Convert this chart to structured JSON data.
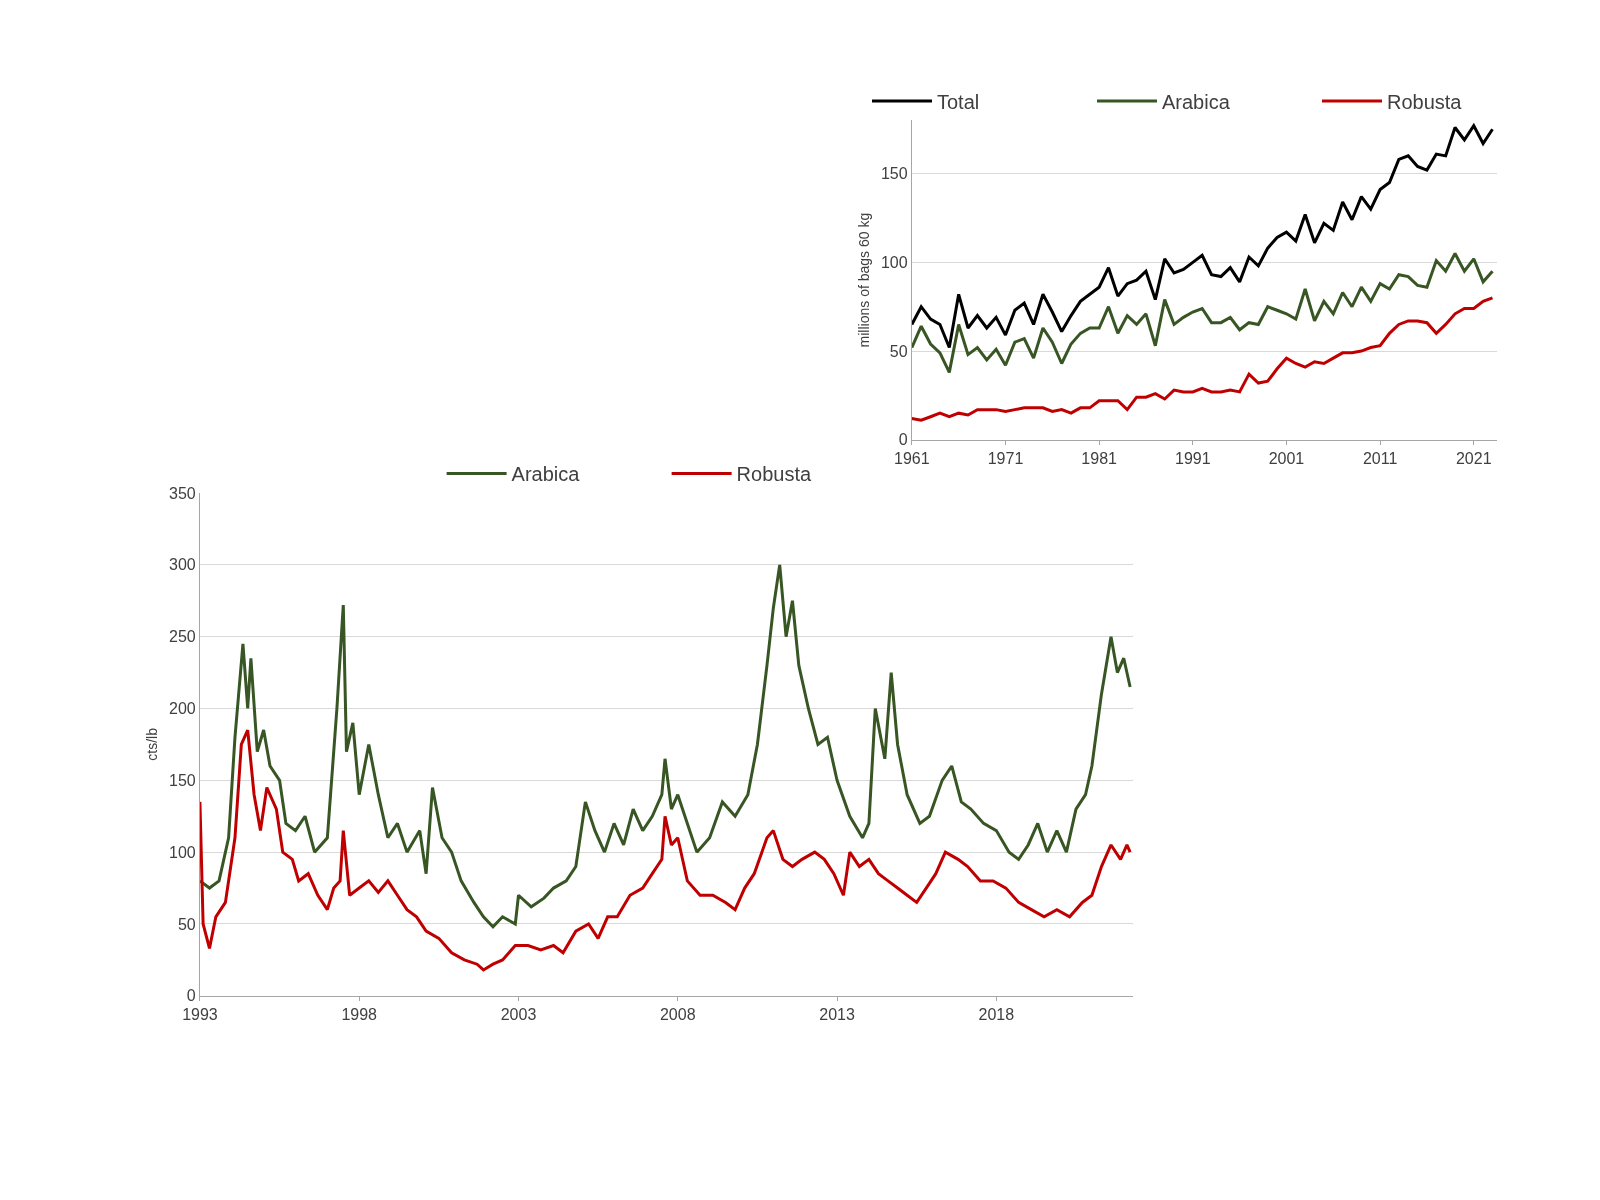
{
  "chart_data": [
    {
      "type": "line",
      "ylabel": "cts/lb",
      "xlim": [
        1993,
        2022.3
      ],
      "xticks": [
        1993,
        1998,
        2003,
        2008,
        2013,
        2018
      ],
      "ylim": [
        0,
        350
      ],
      "yticks": [
        0,
        50,
        100,
        150,
        200,
        250,
        300,
        350
      ],
      "grid": "y",
      "legend": "top",
      "marker": "none",
      "line_style": "solid",
      "series": [
        {
          "name": "Arabica",
          "color": "#375623",
          "x": [
            1993.0,
            1993.3,
            1993.6,
            1993.9,
            1994.1,
            1994.35,
            1994.5,
            1994.6,
            1994.8,
            1995.0,
            1995.2,
            1995.5,
            1995.7,
            1996.0,
            1996.3,
            1996.6,
            1997.0,
            1997.3,
            1997.5,
            1997.6,
            1997.8,
            1998.0,
            1998.3,
            1998.6,
            1998.9,
            1999.2,
            1999.5,
            1999.9,
            2000.1,
            2000.3,
            2000.6,
            2000.9,
            2001.2,
            2001.6,
            2001.9,
            2002.2,
            2002.5,
            2002.9,
            2003.0,
            2003.4,
            2003.8,
            2004.1,
            2004.5,
            2004.8,
            2005.1,
            2005.4,
            2005.7,
            2006.0,
            2006.3,
            2006.6,
            2006.9,
            2007.2,
            2007.5,
            2007.6,
            2007.8,
            2008.0,
            2008.3,
            2008.6,
            2009.0,
            2009.4,
            2009.8,
            2010.2,
            2010.5,
            2010.8,
            2011.0,
            2011.2,
            2011.4,
            2011.6,
            2011.8,
            2012.1,
            2012.4,
            2012.7,
            2013.0,
            2013.4,
            2013.8,
            2014.0,
            2014.2,
            2014.5,
            2014.7,
            2014.9,
            2015.2,
            2015.6,
            2015.9,
            2016.3,
            2016.6,
            2016.9,
            2017.2,
            2017.6,
            2018.0,
            2018.4,
            2018.7,
            2019.0,
            2019.3,
            2019.6,
            2019.9,
            2020.2,
            2020.5,
            2020.8,
            2021.0,
            2021.3,
            2021.6,
            2021.8,
            2022.0,
            2022.2
          ],
          "values": [
            80,
            75,
            80,
            110,
            180,
            245,
            200,
            235,
            170,
            185,
            160,
            150,
            120,
            115,
            125,
            100,
            110,
            200,
            272,
            170,
            190,
            140,
            175,
            140,
            110,
            120,
            100,
            115,
            85,
            145,
            110,
            100,
            80,
            65,
            55,
            48,
            55,
            50,
            70,
            62,
            68,
            75,
            80,
            90,
            135,
            115,
            100,
            120,
            105,
            130,
            115,
            125,
            140,
            165,
            130,
            140,
            120,
            100,
            110,
            135,
            125,
            140,
            175,
            230,
            270,
            300,
            250,
            275,
            230,
            200,
            175,
            180,
            150,
            125,
            110,
            120,
            200,
            165,
            225,
            175,
            140,
            120,
            125,
            150,
            160,
            135,
            130,
            120,
            115,
            100,
            95,
            105,
            120,
            100,
            115,
            100,
            130,
            140,
            160,
            210,
            250,
            225,
            235,
            215
          ]
        },
        {
          "name": "Robusta",
          "color": "#c00000",
          "x": [
            1993.0,
            1993.1,
            1993.3,
            1993.5,
            1993.8,
            1994.1,
            1994.3,
            1994.5,
            1994.7,
            1994.9,
            1995.1,
            1995.4,
            1995.6,
            1995.9,
            1996.1,
            1996.4,
            1996.7,
            1997.0,
            1997.2,
            1997.4,
            1997.5,
            1997.7,
            1998.0,
            1998.3,
            1998.6,
            1998.9,
            1999.2,
            1999.5,
            1999.8,
            2000.1,
            2000.5,
            2000.9,
            2001.3,
            2001.7,
            2001.9,
            2002.2,
            2002.5,
            2002.9,
            2003.3,
            2003.7,
            2004.1,
            2004.4,
            2004.8,
            2005.2,
            2005.5,
            2005.8,
            2006.1,
            2006.5,
            2006.9,
            2007.2,
            2007.5,
            2007.6,
            2007.8,
            2008.0,
            2008.3,
            2008.7,
            2009.1,
            2009.5,
            2009.8,
            2010.1,
            2010.4,
            2010.8,
            2011.0,
            2011.3,
            2011.6,
            2011.9,
            2012.3,
            2012.6,
            2012.9,
            2013.2,
            2013.4,
            2013.7,
            2014.0,
            2014.3,
            2014.6,
            2014.9,
            2015.2,
            2015.5,
            2015.8,
            2016.1,
            2016.4,
            2016.8,
            2017.1,
            2017.5,
            2017.9,
            2018.3,
            2018.7,
            2019.1,
            2019.5,
            2019.9,
            2020.3,
            2020.7,
            2021.0,
            2021.3,
            2021.6,
            2021.9,
            2022.1,
            2022.2
          ],
          "values": [
            135,
            50,
            33,
            55,
            65,
            110,
            175,
            185,
            140,
            115,
            145,
            130,
            100,
            95,
            80,
            85,
            70,
            60,
            75,
            80,
            115,
            70,
            75,
            80,
            72,
            80,
            70,
            60,
            55,
            45,
            40,
            30,
            25,
            22,
            18,
            22,
            25,
            35,
            35,
            32,
            35,
            30,
            45,
            50,
            40,
            55,
            55,
            70,
            75,
            85,
            95,
            125,
            105,
            110,
            80,
            70,
            70,
            65,
            60,
            75,
            85,
            110,
            115,
            95,
            90,
            95,
            100,
            95,
            85,
            70,
            100,
            90,
            95,
            85,
            80,
            75,
            70,
            65,
            75,
            85,
            100,
            95,
            90,
            80,
            80,
            75,
            65,
            60,
            55,
            60,
            55,
            65,
            70,
            90,
            105,
            95,
            105,
            100
          ]
        }
      ]
    },
    {
      "type": "line",
      "ylabel": "millions of bags 60 kg",
      "xlim": [
        1961,
        2023.5
      ],
      "xticks": [
        1961,
        1971,
        1981,
        1991,
        2001,
        2011,
        2021
      ],
      "ylim": [
        0,
        180
      ],
      "yticks": [
        0,
        50,
        100,
        150
      ],
      "grid": "y",
      "legend": "top",
      "marker": "none",
      "line_style": "solid",
      "x": [
        1961,
        1962,
        1963,
        1964,
        1965,
        1966,
        1967,
        1968,
        1969,
        1970,
        1971,
        1972,
        1973,
        1974,
        1975,
        1976,
        1977,
        1978,
        1979,
        1980,
        1981,
        1982,
        1983,
        1984,
        1985,
        1986,
        1987,
        1988,
        1989,
        1990,
        1991,
        1992,
        1993,
        1994,
        1995,
        1996,
        1997,
        1998,
        1999,
        2000,
        2001,
        2002,
        2003,
        2004,
        2005,
        2006,
        2007,
        2008,
        2009,
        2010,
        2011,
        2012,
        2013,
        2014,
        2015,
        2016,
        2017,
        2018,
        2019,
        2020,
        2021,
        2022,
        2023
      ],
      "series": [
        {
          "name": "Total",
          "color": "#000000",
          "values": [
            65,
            75,
            68,
            65,
            52,
            82,
            63,
            70,
            63,
            69,
            59,
            73,
            77,
            65,
            82,
            72,
            61,
            70,
            78,
            82,
            86,
            97,
            81,
            88,
            90,
            95,
            79,
            102,
            94,
            96,
            100,
            104,
            93,
            92,
            97,
            89,
            103,
            98,
            108,
            114,
            117,
            112,
            127,
            111,
            122,
            118,
            134,
            124,
            137,
            130,
            141,
            145,
            158,
            160,
            154,
            152,
            161,
            160,
            176,
            169,
            177,
            167,
            175
          ]
        },
        {
          "name": "Arabica",
          "color": "#375623",
          "values": [
            52,
            64,
            54,
            49,
            38,
            65,
            48,
            52,
            45,
            51,
            42,
            55,
            57,
            46,
            63,
            55,
            43,
            54,
            60,
            63,
            63,
            75,
            60,
            70,
            65,
            71,
            53,
            79,
            65,
            69,
            72,
            74,
            66,
            66,
            69,
            62,
            66,
            65,
            75,
            73,
            71,
            68,
            85,
            67,
            78,
            71,
            83,
            75,
            86,
            78,
            88,
            85,
            93,
            92,
            87,
            86,
            101,
            95,
            105,
            95,
            102,
            89,
            95
          ]
        },
        {
          "name": "Robusta",
          "color": "#c00000",
          "values": [
            12,
            11,
            13,
            15,
            13,
            15,
            14,
            17,
            17,
            17,
            16,
            17,
            18,
            18,
            18,
            16,
            17,
            15,
            18,
            18,
            22,
            22,
            22,
            17,
            24,
            24,
            26,
            23,
            28,
            27,
            27,
            29,
            27,
            27,
            28,
            27,
            37,
            32,
            33,
            40,
            46,
            43,
            41,
            44,
            43,
            46,
            49,
            49,
            50,
            52,
            53,
            60,
            65,
            67,
            67,
            66,
            60,
            65,
            71,
            74,
            74,
            78,
            80
          ]
        }
      ]
    }
  ]
}
